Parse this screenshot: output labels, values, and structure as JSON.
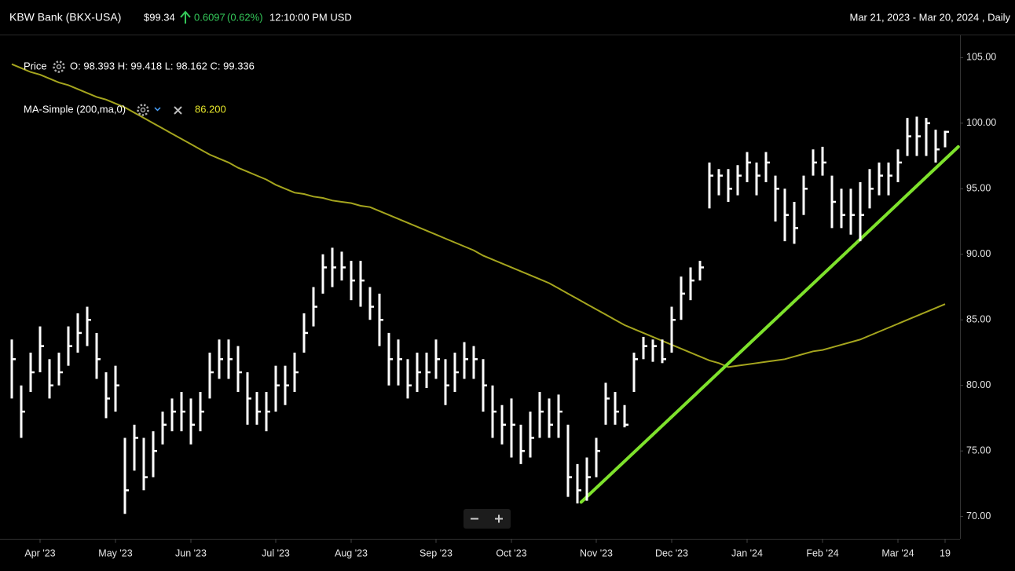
{
  "chart_data": {
    "type": "ohlc",
    "header": {
      "title": "KBW Bank (BKX-USA)",
      "price": "$99.34",
      "change": "0.6097",
      "change_pct": "(0.62%)",
      "time": "12:10:00 PM USD",
      "range": "Mar 21, 2023 - Mar 20, 2024 , Daily"
    },
    "categories": [
      null,
      null,
      null,
      "Apr '23",
      null,
      null,
      null,
      null,
      null,
      null,
      null,
      "May '23",
      null,
      null,
      null,
      null,
      null,
      null,
      null,
      "Jun '23",
      null,
      null,
      null,
      null,
      null,
      null,
      null,
      null,
      "Jul '23",
      null,
      null,
      null,
      null,
      null,
      null,
      null,
      "Aug '23",
      null,
      null,
      null,
      null,
      null,
      null,
      null,
      null,
      "Sep '23",
      null,
      null,
      null,
      null,
      null,
      null,
      null,
      "Oct '23",
      null,
      null,
      null,
      null,
      null,
      null,
      null,
      null,
      "Nov '23",
      null,
      null,
      null,
      null,
      null,
      null,
      null,
      "Dec '23",
      null,
      null,
      null,
      null,
      null,
      null,
      null,
      "Jan '24",
      null,
      null,
      null,
      null,
      null,
      null,
      null,
      "Feb '24",
      null,
      null,
      null,
      null,
      null,
      null,
      null,
      "Mar '24",
      null,
      null,
      null,
      null,
      "19"
    ],
    "series": [
      {
        "name": "Price",
        "readout": "O: 98.393 H: 99.418 L: 98.162 C: 99.336",
        "color": "#ffffff",
        "high": [
          83.5,
          80,
          82.5,
          84.5,
          82,
          82.5,
          84.5,
          85.5,
          86,
          84,
          81,
          81.5,
          76,
          77,
          76,
          76.5,
          78,
          79,
          79.5,
          79,
          79.5,
          82.5,
          83.5,
          83.5,
          83,
          81,
          79.5,
          79.5,
          81.5,
          81.5,
          82.5,
          85.5,
          87.5,
          90,
          90.5,
          90.2,
          89.5,
          89.5,
          87.5,
          87,
          84,
          83.5,
          82,
          82.5,
          82.5,
          83.5,
          82,
          82.5,
          83.3,
          83,
          82,
          80,
          78.5,
          79,
          77,
          78,
          79.5,
          79,
          79.3,
          77,
          74,
          74.5,
          76,
          80.2,
          79.5,
          78.5,
          82.5,
          83.7,
          83.5,
          83.5,
          86,
          88.3,
          89,
          89.5,
          97,
          96.5,
          96.5,
          96.8,
          97.8,
          97,
          97.8,
          96,
          95,
          94,
          96,
          98,
          98.2,
          96,
          95,
          95,
          95.5,
          96.5,
          97,
          97,
          98,
          100.4,
          100.5,
          100.4,
          99.5,
          99.42
        ],
        "low": [
          79,
          76,
          79.5,
          81,
          79,
          80,
          81.5,
          82.5,
          83,
          80.5,
          77.5,
          78,
          70.2,
          73.5,
          72,
          73,
          75.5,
          76.5,
          76.5,
          75.5,
          76.5,
          79,
          80.5,
          80.5,
          79.5,
          77,
          77,
          76.5,
          78,
          78.5,
          79.5,
          82.5,
          84.5,
          87,
          87.5,
          88,
          86.5,
          86,
          85,
          83,
          80,
          80,
          79,
          79.5,
          79.8,
          80.5,
          78.5,
          79.5,
          80.5,
          80.5,
          78,
          76,
          75.5,
          74.5,
          74,
          74.5,
          76,
          76,
          76,
          71.5,
          71,
          71.2,
          73,
          77,
          77,
          76.8,
          79.5,
          82,
          81.8,
          81.7,
          82.5,
          85,
          86.5,
          88,
          93.5,
          94.5,
          94,
          94.5,
          95.5,
          94.5,
          95.5,
          92.5,
          91,
          90.8,
          93,
          96,
          96,
          92,
          92,
          91.5,
          91,
          93.5,
          94.5,
          94.5,
          95.5,
          97.5,
          97.5,
          97.5,
          97,
          98.16
        ],
        "close": [
          82,
          78,
          81,
          83,
          80,
          81,
          83,
          84,
          85,
          82,
          79,
          80,
          72,
          76,
          73,
          75,
          77,
          78,
          78,
          77,
          78,
          81,
          82,
          82,
          81,
          79,
          78,
          78,
          80,
          80,
          81,
          84,
          86,
          89,
          89,
          89,
          88,
          88,
          86,
          85,
          82,
          82,
          80,
          81,
          81,
          82,
          80,
          81,
          82,
          82,
          80,
          78,
          77,
          77,
          75,
          76,
          78,
          77,
          78,
          73,
          72,
          73,
          75,
          79,
          78,
          77,
          82,
          83,
          83,
          82,
          85,
          87,
          88,
          89,
          96,
          96,
          95,
          96,
          97,
          96,
          97,
          95,
          93,
          92,
          95,
          97,
          97,
          94,
          93,
          93,
          93,
          95,
          96,
          96,
          97,
          99,
          99,
          100,
          98,
          99.34
        ]
      },
      {
        "name": "MA-Simple (200,ma,0)",
        "readout": "86.200",
        "color": "#a5a51e",
        "values": [
          104.5,
          104.2,
          103.9,
          103.7,
          103.4,
          103.1,
          102.9,
          102.6,
          102.3,
          102.0,
          101.8,
          101.5,
          101.2,
          100.8,
          100.4,
          100.0,
          99.6,
          99.2,
          98.8,
          98.4,
          98.0,
          97.6,
          97.3,
          97.0,
          96.6,
          96.3,
          96.0,
          95.7,
          95.3,
          95.0,
          94.7,
          94.6,
          94.4,
          94.3,
          94.1,
          94.0,
          93.9,
          93.7,
          93.6,
          93.3,
          93.0,
          92.7,
          92.4,
          92.1,
          91.8,
          91.5,
          91.2,
          90.9,
          90.6,
          90.3,
          89.9,
          89.6,
          89.3,
          89.0,
          88.7,
          88.4,
          88.1,
          87.8,
          87.4,
          87.0,
          86.6,
          86.2,
          85.8,
          85.4,
          85.0,
          84.6,
          84.3,
          84.0,
          83.7,
          83.4,
          83.1,
          82.8,
          82.5,
          82.2,
          81.9,
          81.7,
          81.4,
          81.5,
          81.6,
          81.7,
          81.8,
          81.9,
          82.0,
          82.2,
          82.4,
          82.6,
          82.7,
          82.9,
          83.1,
          83.3,
          83.5,
          83.8,
          84.1,
          84.4,
          84.7,
          85.0,
          85.3,
          85.6,
          85.9,
          86.2
        ]
      }
    ],
    "trendline": {
      "color": "#7ee22c",
      "values": [
        71.1,
        98.2
      ]
    },
    "ylim": [
      68.3,
      106.7
    ],
    "yticks": [
      {
        "value": 70,
        "label": "70.00"
      },
      {
        "value": 75,
        "label": "75.00"
      },
      {
        "value": 80,
        "label": "80.00"
      },
      {
        "value": 85,
        "label": "85.00"
      },
      {
        "value": 90,
        "label": "90.00"
      },
      {
        "value": 95,
        "label": "95.00"
      },
      {
        "value": 100,
        "label": "100.00"
      },
      {
        "value": 105,
        "label": "105.00"
      }
    ],
    "grid": false
  }
}
